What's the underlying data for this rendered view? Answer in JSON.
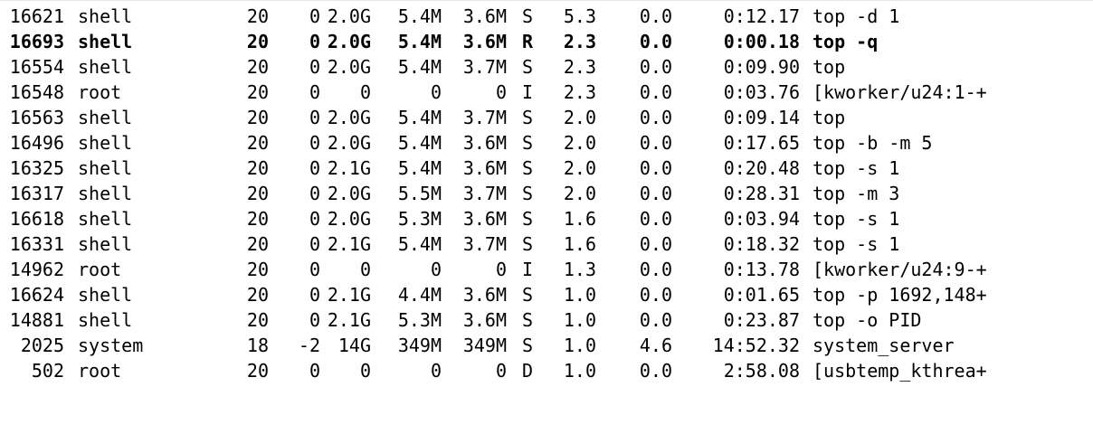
{
  "processes": [
    {
      "pid": "16621",
      "user": "shell",
      "pr": "20",
      "ni": "0",
      "virt": "2.0G",
      "res": "5.4M",
      "shr": "3.6M",
      "s": "S",
      "cpu": "5.3",
      "mem": "0.0",
      "time": "0:12.17",
      "command": "top -d 1"
    },
    {
      "pid": "16693",
      "user": "shell",
      "pr": "20",
      "ni": "0",
      "virt": "2.0G",
      "res": "5.4M",
      "shr": "3.6M",
      "s": "R",
      "cpu": "2.3",
      "mem": "0.0",
      "time": "0:00.18",
      "command": "top -q"
    },
    {
      "pid": "16554",
      "user": "shell",
      "pr": "20",
      "ni": "0",
      "virt": "2.0G",
      "res": "5.4M",
      "shr": "3.7M",
      "s": "S",
      "cpu": "2.3",
      "mem": "0.0",
      "time": "0:09.90",
      "command": "top"
    },
    {
      "pid": "16548",
      "user": "root",
      "pr": "20",
      "ni": "0",
      "virt": "0",
      "res": "0",
      "shr": "0",
      "s": "I",
      "cpu": "2.3",
      "mem": "0.0",
      "time": "0:03.76",
      "command": "[kworker/u24:1-+"
    },
    {
      "pid": "16563",
      "user": "shell",
      "pr": "20",
      "ni": "0",
      "virt": "2.0G",
      "res": "5.4M",
      "shr": "3.7M",
      "s": "S",
      "cpu": "2.0",
      "mem": "0.0",
      "time": "0:09.14",
      "command": "top"
    },
    {
      "pid": "16496",
      "user": "shell",
      "pr": "20",
      "ni": "0",
      "virt": "2.0G",
      "res": "5.4M",
      "shr": "3.6M",
      "s": "S",
      "cpu": "2.0",
      "mem": "0.0",
      "time": "0:17.65",
      "command": "top -b -m 5"
    },
    {
      "pid": "16325",
      "user": "shell",
      "pr": "20",
      "ni": "0",
      "virt": "2.1G",
      "res": "5.4M",
      "shr": "3.6M",
      "s": "S",
      "cpu": "2.0",
      "mem": "0.0",
      "time": "0:20.48",
      "command": "top -s 1"
    },
    {
      "pid": "16317",
      "user": "shell",
      "pr": "20",
      "ni": "0",
      "virt": "2.0G",
      "res": "5.5M",
      "shr": "3.7M",
      "s": "S",
      "cpu": "2.0",
      "mem": "0.0",
      "time": "0:28.31",
      "command": "top -m 3"
    },
    {
      "pid": "16618",
      "user": "shell",
      "pr": "20",
      "ni": "0",
      "virt": "2.0G",
      "res": "5.3M",
      "shr": "3.6M",
      "s": "S",
      "cpu": "1.6",
      "mem": "0.0",
      "time": "0:03.94",
      "command": "top -s 1"
    },
    {
      "pid": "16331",
      "user": "shell",
      "pr": "20",
      "ni": "0",
      "virt": "2.1G",
      "res": "5.4M",
      "shr": "3.7M",
      "s": "S",
      "cpu": "1.6",
      "mem": "0.0",
      "time": "0:18.32",
      "command": "top -s 1"
    },
    {
      "pid": "14962",
      "user": "root",
      "pr": "20",
      "ni": "0",
      "virt": "0",
      "res": "0",
      "shr": "0",
      "s": "I",
      "cpu": "1.3",
      "mem": "0.0",
      "time": "0:13.78",
      "command": "[kworker/u24:9-+"
    },
    {
      "pid": "16624",
      "user": "shell",
      "pr": "20",
      "ni": "0",
      "virt": "2.1G",
      "res": "4.4M",
      "shr": "3.6M",
      "s": "S",
      "cpu": "1.0",
      "mem": "0.0",
      "time": "0:01.65",
      "command": "top -p 1692,148+"
    },
    {
      "pid": "14881",
      "user": "shell",
      "pr": "20",
      "ni": "0",
      "virt": "2.1G",
      "res": "5.3M",
      "shr": "3.6M",
      "s": "S",
      "cpu": "1.0",
      "mem": "0.0",
      "time": "0:23.87",
      "command": "top -o PID"
    },
    {
      "pid": "2025",
      "user": "system",
      "pr": "18",
      "ni": "-2",
      "virt": "14G",
      "res": "349M",
      "shr": "349M",
      "s": "S",
      "cpu": "1.0",
      "mem": "4.6",
      "time": "14:52.32",
      "command": "system_server"
    },
    {
      "pid": "502",
      "user": "root",
      "pr": "20",
      "ni": "0",
      "virt": "0",
      "res": "0",
      "shr": "0",
      "s": "D",
      "cpu": "1.0",
      "mem": "0.0",
      "time": "2:58.08",
      "command": "[usbtemp_kthrea+"
    }
  ]
}
